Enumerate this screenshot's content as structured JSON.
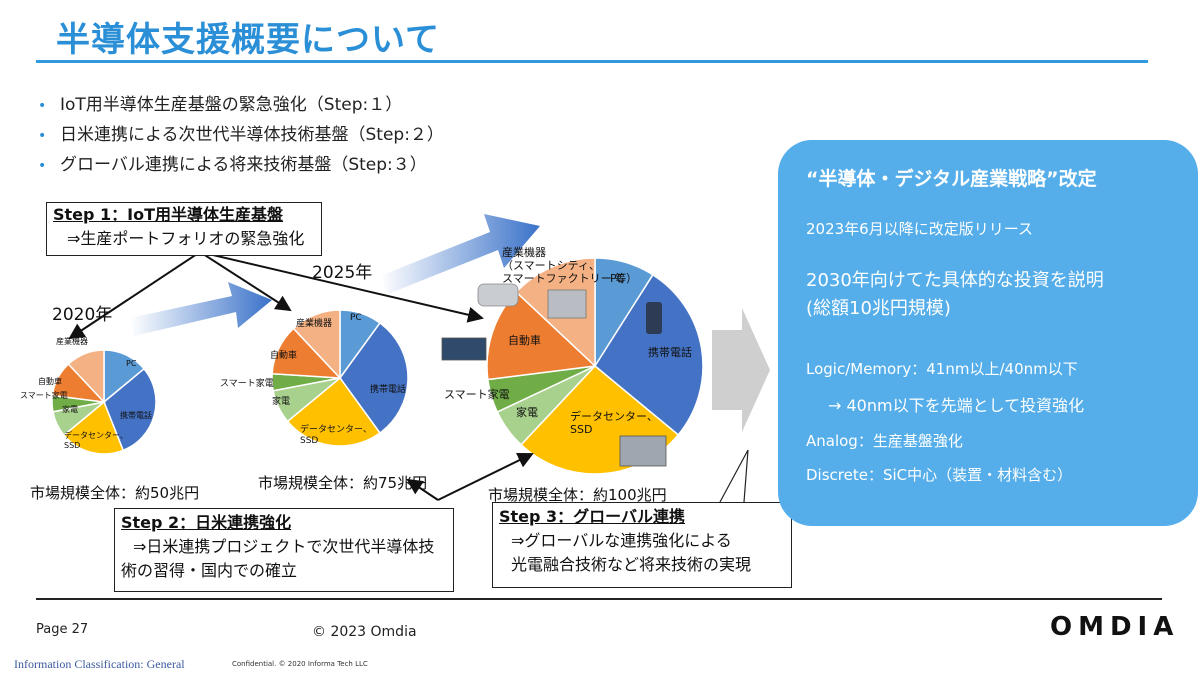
{
  "title": "半導体支援概要について",
  "bullets": [
    "IoT用半導体生産基盤の緊急強化（Step:１）",
    "日米連携による次世代半導体技術基盤（Step:２）",
    "グローバル連携による将来技術基盤（Step:３）"
  ],
  "years": {
    "y2020": "2020年",
    "y2025": "2025年"
  },
  "step1": {
    "heading": "Step 1：IoT用半導体生産基盤",
    "desc": "⇒生産ポートフォリオの緊急強化"
  },
  "step2": {
    "heading": "Step 2：日米連携強化",
    "desc1": "⇒日米連携プロジェクトで次世代半導体技",
    "desc2": "術の習得・国内での確立"
  },
  "step3": {
    "heading": "Step 3：グローバル連携",
    "desc1": "⇒グローバルな連携強化による",
    "desc2": "光電融合技術など将来技術の実現"
  },
  "pies": [
    {
      "market": "市場規模全体：約50兆円",
      "slices": [
        {
          "label": "PC",
          "value": 14,
          "color": "#5b9bd5"
        },
        {
          "label": "携帯電話",
          "value": 30,
          "color": "#4472c4"
        },
        {
          "label": "データセンター、SSD",
          "value": 20,
          "color": "#ffc000"
        },
        {
          "label": "家電",
          "value": 8,
          "color": "#a9d18e"
        },
        {
          "label": "スマート家電",
          "value": 5,
          "color": "#70ad47"
        },
        {
          "label": "自動車",
          "value": 11,
          "color": "#ed7d31"
        },
        {
          "label": "産業機器",
          "value": 12,
          "color": "#f4b183"
        }
      ]
    },
    {
      "market": "市場規模全体：約75兆円",
      "slices": [
        {
          "label": "PC",
          "value": 10,
          "color": "#5b9bd5"
        },
        {
          "label": "携帯電話",
          "value": 30,
          "color": "#4472c4"
        },
        {
          "label": "データセンター、SSD",
          "value": 24,
          "color": "#ffc000"
        },
        {
          "label": "家電",
          "value": 8,
          "color": "#a9d18e"
        },
        {
          "label": "スマート家電",
          "value": 4,
          "color": "#70ad47"
        },
        {
          "label": "自動車",
          "value": 12,
          "color": "#ed7d31"
        },
        {
          "label": "産業機器",
          "value": 12,
          "color": "#f4b183"
        }
      ]
    },
    {
      "market": "市場規模全体：約100兆円",
      "slices": [
        {
          "label": "PC",
          "value": 9,
          "color": "#5b9bd5"
        },
        {
          "label": "携帯電話",
          "value": 27,
          "color": "#4472c4"
        },
        {
          "label": "データセンター、SSD",
          "value": 26,
          "color": "#ffc000"
        },
        {
          "label": "家電",
          "value": 6,
          "color": "#a9d18e"
        },
        {
          "label": "スマート家電",
          "value": 5,
          "color": "#70ad47"
        },
        {
          "label": "自動車",
          "value": 14,
          "color": "#ed7d31"
        },
        {
          "label": "産業機器（スマートシティ、スマートファクトリー 等）",
          "value": 13,
          "color": "#f4b183"
        }
      ]
    }
  ],
  "panel": {
    "heading": "“半導体・デジタル産業戦略”改定",
    "release": "2023年6月以降に改定版リリース",
    "invest1": "2030年向けてた具体的な投資を説明",
    "invest2": "(総額10兆円規模)",
    "logic": "Logic/Memory：41nm以上/40nm以下",
    "logic_sub": "→ 40nm以下を先端として投資強化",
    "analog": "Analog：生産基盤強化",
    "discrete": "Discrete：SiC中心（装置・材料含む）"
  },
  "footer": {
    "page": "Page 27",
    "copyright": "© 2023 Omdia",
    "logo": "OMDIA",
    "classification": "Information Classification: General",
    "confidential": "Confidential. © 2020 Informa Tech LLC"
  }
}
